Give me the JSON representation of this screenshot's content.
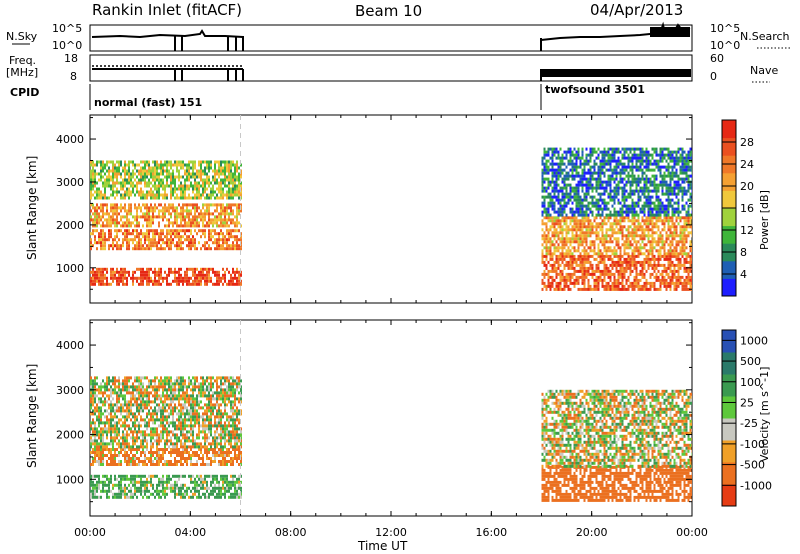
{
  "header": {
    "site": "Rankin Inlet (fitACF)",
    "beam": "Beam 10",
    "date": "04/Apr/2013"
  },
  "strip_labels": {
    "nsky": "N.Sky",
    "freq_1": "Freq.",
    "freq_2": "[MHz]",
    "cpid": "CPID",
    "nsearch": "N.Search",
    "nave": "Nave"
  },
  "strip_ticks": {
    "nsky_top": "10^5",
    "nsky_bottom": "10^0",
    "nsearch_top": "10^5",
    "nsearch_bottom": "10^0",
    "freq_top": "18",
    "freq_bottom": "8",
    "nave_top": "60",
    "nave_bottom": "0"
  },
  "cpid": {
    "left": "normal (fast) 151",
    "right": "twofsound 3501"
  },
  "time_axis": {
    "label": "Time UT",
    "ticks": [
      "00:00",
      "04:00",
      "08:00",
      "12:00",
      "16:00",
      "20:00",
      "00:00"
    ]
  },
  "colorbar_power": {
    "label": "Power [dB]",
    "ticks": [
      "4",
      "8",
      "12",
      "16",
      "20",
      "24",
      "28"
    ],
    "colors": [
      "#1e1eff",
      "#1f5fb4",
      "#2a8a5a",
      "#3fb53a",
      "#a0d23c",
      "#f0c83c",
      "#f5a032",
      "#f07828",
      "#eb5020",
      "#e62814"
    ]
  },
  "colorbar_velocity": {
    "label": "Velocity [m s^-1]",
    "ticks": [
      "1000",
      "500",
      "100",
      "25",
      "-25",
      "-100",
      "-500",
      "-1000"
    ],
    "colors": [
      "#2850b4",
      "#2a7a6a",
      "#3a9a50",
      "#5ec83c",
      "#c8c8c0",
      "#f0a028",
      "#eb7020",
      "#e63c14"
    ]
  },
  "chart_data": [
    {
      "type": "heatmap",
      "panel": "power",
      "ylabel": "Slant Range [km]",
      "xlabel": "",
      "xlim_hours": [
        0,
        24
      ],
      "ylim_km": [
        180,
        4560
      ],
      "yticks": [
        "1000",
        "2000",
        "3000",
        "4000"
      ],
      "scale_label": "Power [dB]",
      "scale_range": [
        0,
        30
      ],
      "data_windows_hours": [
        [
          0,
          6
        ],
        [
          18,
          24
        ]
      ],
      "bands": [
        {
          "t": [
            0,
            6
          ],
          "range_km": [
            650,
            1000
          ],
          "power_db": 26
        },
        {
          "t": [
            0,
            6
          ],
          "range_km": [
            1450,
            1900
          ],
          "power_db": 22
        },
        {
          "t": [
            0,
            6
          ],
          "range_km": [
            2000,
            2500
          ],
          "power_db": 20
        },
        {
          "t": [
            0,
            6
          ],
          "range_km": [
            2600,
            3500
          ],
          "power_db": 14
        },
        {
          "t": [
            18,
            24
          ],
          "range_km": [
            500,
            1300
          ],
          "power_db": 24
        },
        {
          "t": [
            18,
            24
          ],
          "range_km": [
            1300,
            2200
          ],
          "power_db": 20
        },
        {
          "t": [
            18,
            24
          ],
          "range_km": [
            2200,
            3800
          ],
          "power_db": 6
        }
      ]
    },
    {
      "type": "heatmap",
      "panel": "velocity",
      "ylabel": "Slant Range [km]",
      "xlabel": "Time UT",
      "xlim_hours": [
        0,
        24
      ],
      "ylim_km": [
        180,
        4560
      ],
      "yticks": [
        "1000",
        "2000",
        "3000",
        "4000"
      ],
      "scale_label": "Velocity [m s^-1]",
      "scale_range": [
        -1000,
        1000
      ],
      "data_windows_hours": [
        [
          0,
          6
        ],
        [
          18,
          24
        ]
      ],
      "bands": [
        {
          "t": [
            0,
            6
          ],
          "range_km": [
            600,
            1100
          ],
          "velocity": 150
        },
        {
          "t": [
            0,
            6
          ],
          "range_km": [
            1300,
            1700
          ],
          "velocity": -150
        },
        {
          "t": [
            0,
            6
          ],
          "range_km": [
            1700,
            3300
          ],
          "velocity": 0
        },
        {
          "t": [
            18,
            24
          ],
          "range_km": [
            500,
            1300
          ],
          "velocity": -300
        },
        {
          "t": [
            18,
            24
          ],
          "range_km": [
            1300,
            3000
          ],
          "velocity": 0
        }
      ]
    }
  ]
}
